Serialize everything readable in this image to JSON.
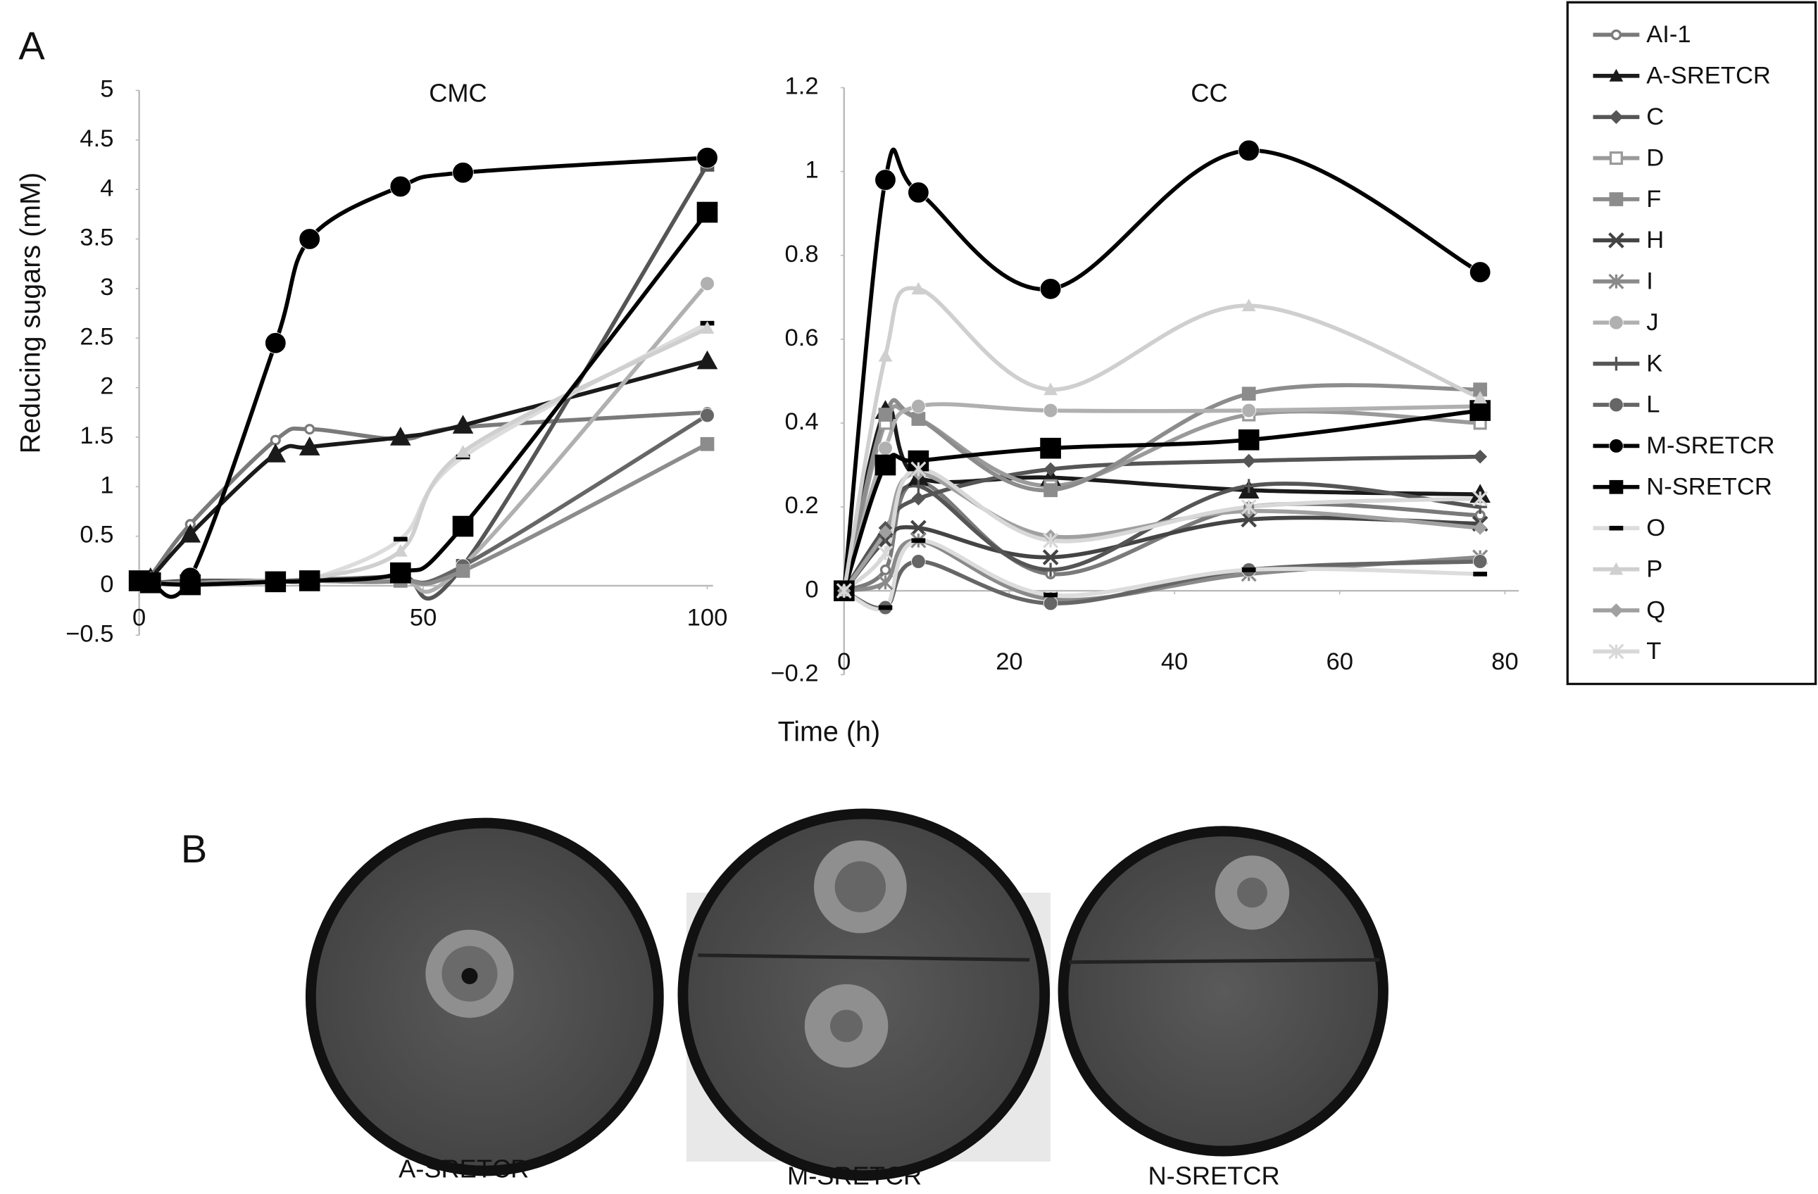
{
  "panel_a_label": "A",
  "x_axis_title": "Time (h)",
  "chart_data": [
    {
      "type": "line",
      "title": "CMC",
      "ylabel": "Reducing sugars (mM)",
      "x": [
        0,
        2,
        9,
        24,
        30,
        46,
        57,
        100
      ],
      "xlim": [
        0,
        100
      ],
      "xticks": [
        0,
        50,
        100
      ],
      "ylim": [
        -0.5,
        5
      ],
      "yticks": [
        {
          "value": -0.5,
          "label": "−0.5"
        },
        0,
        0.5,
        1,
        1.5,
        2,
        2.5,
        3,
        3.5,
        4,
        4.5,
        5
      ],
      "series": [
        {
          "name": "AI-1",
          "color": "#7a7a7a",
          "marker": "circle-open",
          "values": [
            0.05,
            0.1,
            0.62,
            1.47,
            1.58,
            1.48,
            1.6,
            1.75
          ]
        },
        {
          "name": "A-SRETCR",
          "color": "#1a1a1a",
          "marker": "triangle",
          "values": [
            0.05,
            0.08,
            0.52,
            1.33,
            1.4,
            1.5,
            1.62,
            2.27
          ]
        },
        {
          "name": "C",
          "color": "#555555",
          "marker": "square",
          "values": [
            0.05,
            0.03,
            0.05,
            0.05,
            0.06,
            0.1,
            0.2,
            4.25
          ]
        },
        {
          "name": "J",
          "color": "#b0b0b0",
          "marker": "circle",
          "values": [
            0.05,
            0.03,
            0.03,
            0.04,
            0.05,
            0.05,
            0.2,
            3.05
          ]
        },
        {
          "name": "O",
          "color": "#dcdcdc",
          "marker": "dash",
          "values": [
            0.05,
            0.03,
            0.03,
            0.05,
            0.06,
            0.47,
            1.3,
            2.65
          ]
        },
        {
          "name": "P",
          "color": "#cfcfcf",
          "marker": "triangle",
          "values": [
            0.05,
            0.03,
            0.03,
            0.05,
            0.07,
            0.35,
            1.35,
            2.6
          ]
        },
        {
          "name": "L",
          "color": "#666666",
          "marker": "circle",
          "values": [
            0.05,
            0.03,
            0.03,
            0.04,
            0.05,
            0.05,
            0.2,
            1.72
          ]
        },
        {
          "name": "F",
          "color": "#8c8c8c",
          "marker": "square",
          "values": [
            0.05,
            0.03,
            0.03,
            0.04,
            0.05,
            0.05,
            0.15,
            1.43
          ]
        },
        {
          "name": "M-SRETCR",
          "color": "#000000",
          "marker": "circle",
          "values": [
            0.05,
            0.03,
            0.08,
            2.45,
            3.5,
            4.03,
            4.17,
            4.32
          ]
        },
        {
          "name": "N-SRETCR",
          "color": "#000000",
          "marker": "square",
          "values": [
            0.05,
            0.03,
            0.01,
            0.04,
            0.05,
            0.13,
            0.6,
            3.77
          ]
        }
      ]
    },
    {
      "type": "line",
      "title": "CC",
      "legend": "right",
      "x": [
        0,
        5,
        9,
        25,
        49,
        77
      ],
      "xlim": [
        0,
        80
      ],
      "xticks": [
        0,
        20,
        40,
        60,
        80
      ],
      "ylim": [
        -0.2,
        1.2
      ],
      "yticks": [
        {
          "value": -0.2,
          "label": "−0.2"
        },
        0,
        0.2,
        0.4,
        0.6,
        0.8,
        1,
        1.2
      ],
      "series": [
        {
          "name": "AI-1",
          "color": "#7a7a7a",
          "marker": "circle-open",
          "values": [
            0,
            0.05,
            0.26,
            0.04,
            0.2,
            0.18
          ]
        },
        {
          "name": "A-SRETCR",
          "color": "#1a1a1a",
          "marker": "triangle",
          "values": [
            0,
            0.43,
            0.27,
            0.27,
            0.24,
            0.23
          ]
        },
        {
          "name": "C",
          "color": "#555555",
          "marker": "diamond",
          "values": [
            0,
            0.15,
            0.22,
            0.29,
            0.31,
            0.32
          ]
        },
        {
          "name": "D",
          "color": "#9a9a9a",
          "marker": "square-open",
          "values": [
            0,
            0.4,
            0.41,
            0.25,
            0.42,
            0.4
          ]
        },
        {
          "name": "F",
          "color": "#8c8c8c",
          "marker": "square",
          "values": [
            0,
            0.42,
            0.41,
            0.24,
            0.47,
            0.48
          ]
        },
        {
          "name": "H",
          "color": "#444444",
          "marker": "x",
          "values": [
            0,
            0.12,
            0.15,
            0.08,
            0.17,
            0.16
          ]
        },
        {
          "name": "I",
          "color": "#8a8a8a",
          "marker": "star",
          "values": [
            0,
            0.02,
            0.12,
            -0.02,
            0.04,
            0.08
          ]
        },
        {
          "name": "J",
          "color": "#b0b0b0",
          "marker": "circle",
          "values": [
            0,
            0.34,
            0.44,
            0.43,
            0.43,
            0.44
          ]
        },
        {
          "name": "K",
          "color": "#555555",
          "marker": "plus",
          "values": [
            0,
            0.13,
            0.25,
            0.05,
            0.25,
            0.2
          ]
        },
        {
          "name": "L",
          "color": "#666666",
          "marker": "circle",
          "values": [
            0,
            -0.04,
            0.07,
            -0.03,
            0.05,
            0.07
          ]
        },
        {
          "name": "M-SRETCR",
          "color": "#000000",
          "marker": "circle",
          "values": [
            0,
            0.98,
            0.95,
            0.72,
            1.05,
            0.76
          ]
        },
        {
          "name": "N-SRETCR",
          "color": "#000000",
          "marker": "square",
          "values": [
            0,
            0.3,
            0.31,
            0.34,
            0.36,
            0.43
          ]
        },
        {
          "name": "O",
          "color": "#dcdcdc",
          "marker": "dash",
          "values": [
            0,
            -0.04,
            0.12,
            -0.01,
            0.05,
            0.04
          ]
        },
        {
          "name": "P",
          "color": "#cfcfcf",
          "marker": "triangle",
          "values": [
            0,
            0.56,
            0.72,
            0.48,
            0.68,
            0.46
          ]
        },
        {
          "name": "Q",
          "color": "#a0a0a0",
          "marker": "diamond",
          "values": [
            0,
            0.14,
            0.28,
            0.13,
            0.19,
            0.15
          ]
        },
        {
          "name": "T",
          "color": "#d8d8d8",
          "marker": "star",
          "values": [
            0,
            0.09,
            0.29,
            0.12,
            0.2,
            0.22
          ]
        }
      ]
    }
  ],
  "panel_b": {
    "label": "B",
    "plates": [
      "A-SRETCR",
      "M-SRETCR",
      "N-SRETCR"
    ]
  }
}
